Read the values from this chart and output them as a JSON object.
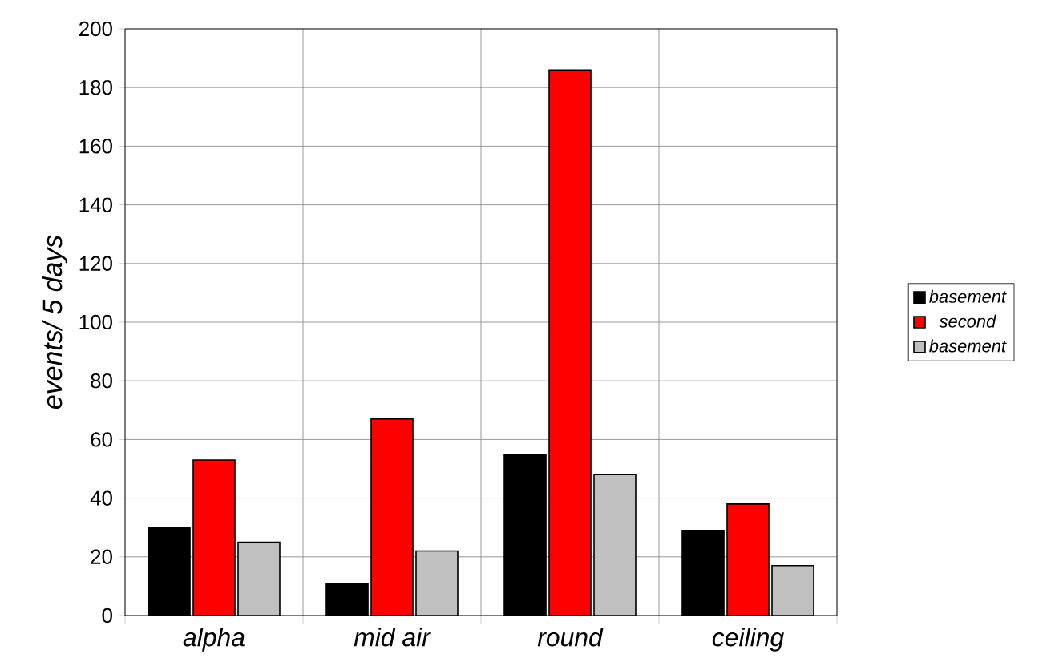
{
  "chart_data": {
    "type": "bar",
    "ylabel": "events/ 5 days",
    "categories": [
      "alpha",
      "mid air",
      "round",
      "ceiling"
    ],
    "series": [
      {
        "name": "basement",
        "color": "#000000",
        "values": [
          30,
          11,
          55,
          29
        ]
      },
      {
        "name": "second",
        "color": "#ff0000",
        "values": [
          53,
          67,
          186,
          38
        ]
      },
      {
        "name": "basement",
        "color": "#c0c0c0",
        "values": [
          25,
          22,
          48,
          17
        ]
      }
    ],
    "ylim": [
      0,
      200
    ],
    "yticks": [
      0,
      20,
      40,
      60,
      80,
      100,
      120,
      140,
      160,
      180,
      200
    ],
    "grid": true,
    "legend": "right"
  }
}
